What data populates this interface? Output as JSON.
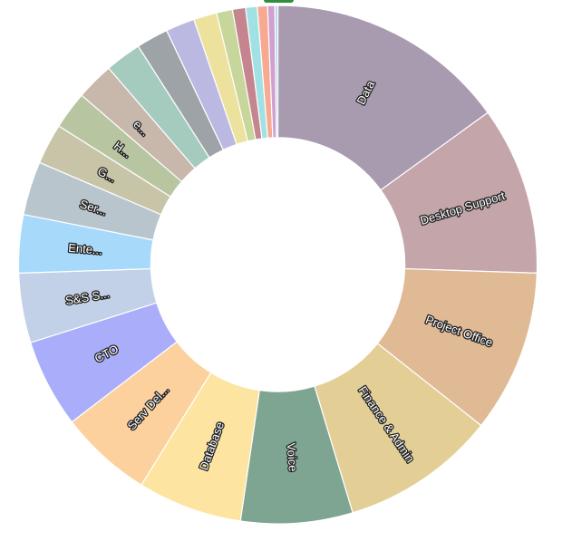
{
  "chart_data": {
    "type": "donut",
    "title": "",
    "start_angle_deg": 90,
    "inner_radius_ratio": 0.49,
    "slices": [
      {
        "label": "Data",
        "value": 16.6,
        "color": "#a89bb0",
        "show_label": true
      },
      {
        "label": "Desktop Support",
        "value": 11.6,
        "color": "#c4a5aa",
        "show_label": true
      },
      {
        "label": "Project Office",
        "value": 11.2,
        "color": "#dfba95",
        "show_label": true
      },
      {
        "label": "Finance & Admin",
        "value": 10.7,
        "color": "#e3cf96",
        "show_label": true
      },
      {
        "label": "Voice",
        "value": 7.7,
        "color": "#7da592",
        "show_label": true
      },
      {
        "label": "Database",
        "value": 7.2,
        "color": "#fde4a0",
        "show_label": true
      },
      {
        "label": "Serv Del...",
        "value": 6.4,
        "color": "#fdd19e",
        "show_label": true
      },
      {
        "label": "CTO",
        "value": 6.1,
        "color": "#a9adfa",
        "show_label": true
      },
      {
        "label": "S&S S...",
        "value": 4.8,
        "color": "#c2d1e7",
        "show_label": true
      },
      {
        "label": "Ente...",
        "value": 4.0,
        "color": "#a7d9fb",
        "show_label": true
      },
      {
        "label": "Ser...",
        "value": 3.7,
        "color": "#b8c5cd",
        "show_label": true
      },
      {
        "label": "G...",
        "value": 2.8,
        "color": "#c8c4a7",
        "show_label": true
      },
      {
        "label": "H...",
        "value": 2.6,
        "color": "#b8c5a1",
        "show_label": true
      },
      {
        "label": "e...",
        "value": 2.6,
        "color": "#c8b7ab",
        "show_label": true
      },
      {
        "label": "",
        "value": 2.5,
        "color": "#a5cbbf",
        "show_label": false
      },
      {
        "label": "",
        "value": 2.2,
        "color": "#9ea3a8",
        "show_label": false
      },
      {
        "label": "",
        "value": 2.0,
        "color": "#bbb9e2",
        "show_label": false
      },
      {
        "label": "",
        "value": 1.6,
        "color": "#ede29d",
        "show_label": false
      },
      {
        "label": "",
        "value": 1.1,
        "color": "#c7d69a",
        "show_label": false
      },
      {
        "label": "",
        "value": 0.9,
        "color": "#c4858f",
        "show_label": false
      },
      {
        "label": "",
        "value": 0.8,
        "color": "#a2e1e3",
        "show_label": false
      },
      {
        "label": "",
        "value": 0.7,
        "color": "#f7a992",
        "show_label": false
      },
      {
        "label": "",
        "value": 0.5,
        "color": "#cfa0d0",
        "show_label": false
      },
      {
        "label": "",
        "value": 0.2,
        "color": "#b5d6e6",
        "show_label": false
      }
    ]
  }
}
